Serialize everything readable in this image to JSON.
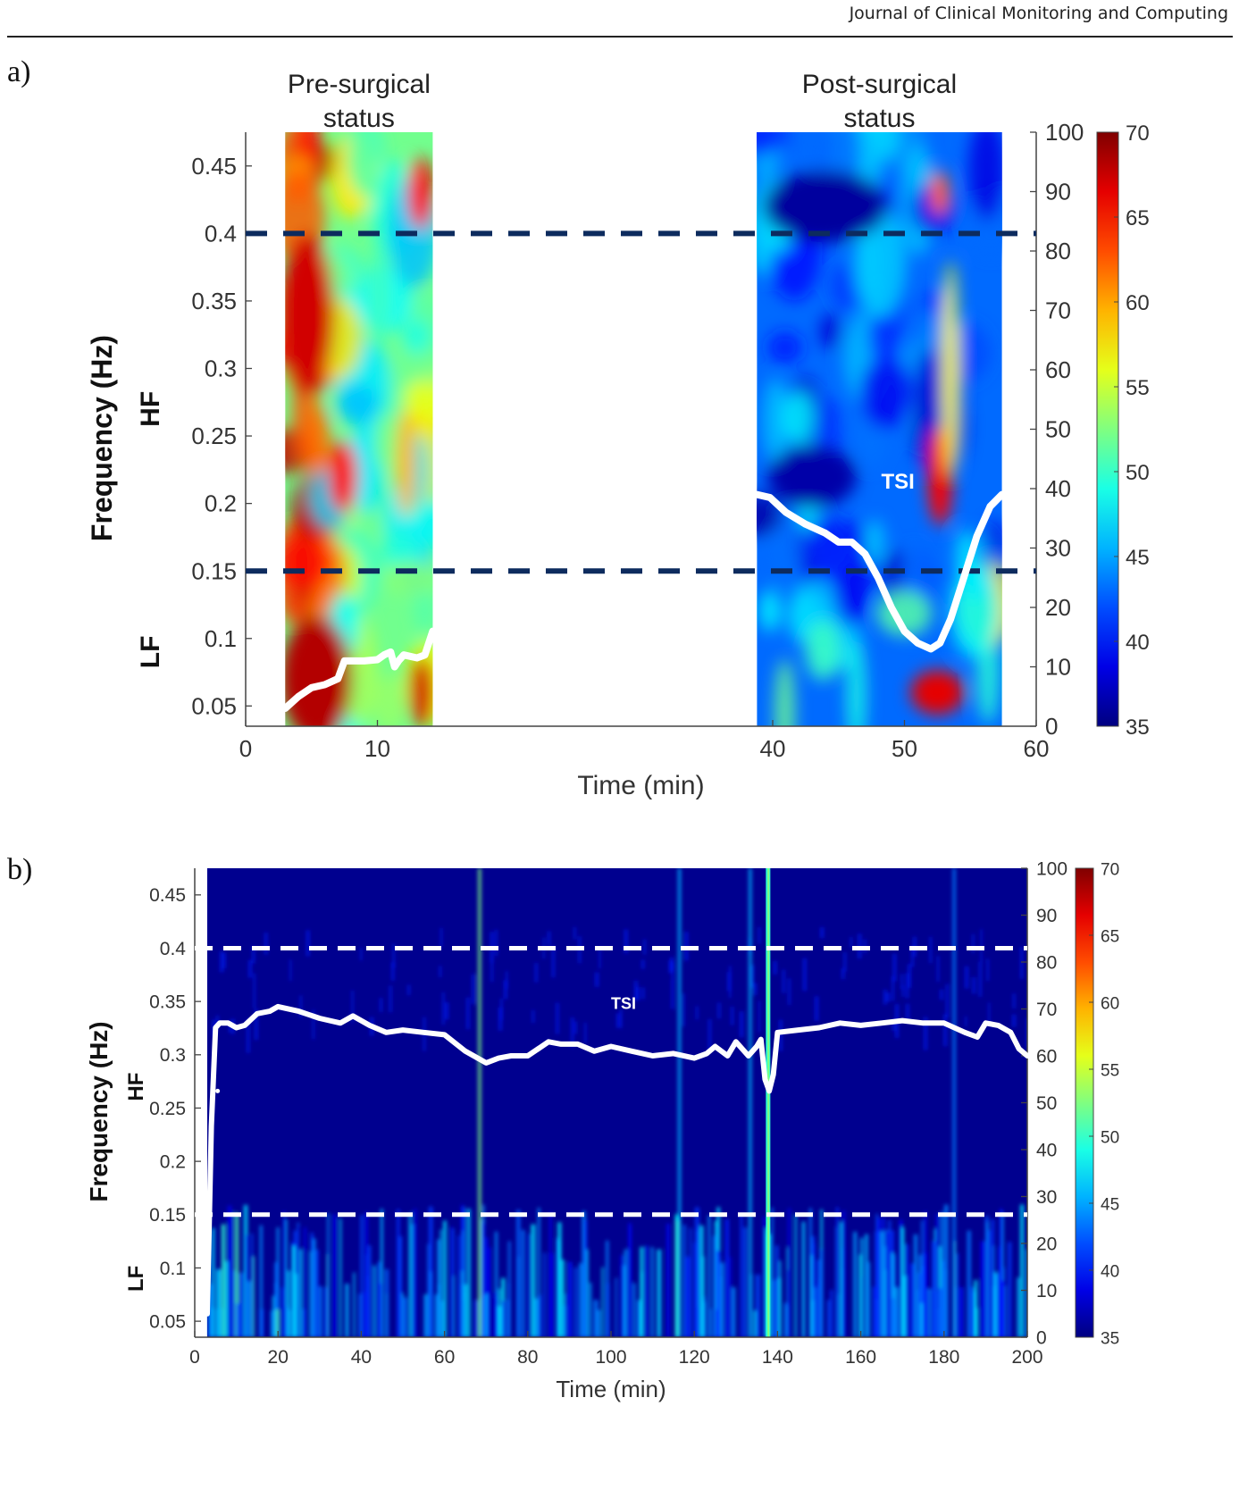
{
  "header": {
    "journal": "Journal of Clinical Monitoring and Computing"
  },
  "panels": [
    {
      "label": "a)"
    },
    {
      "label": "b)"
    }
  ],
  "chart_data": [
    {
      "type": "heatmap",
      "segment_titles": [
        "Pre-surgical status",
        "Post-surgical status"
      ],
      "segment_title_lines": [
        [
          "Pre-surgical",
          "status"
        ],
        [
          "Post-surgical",
          "status"
        ]
      ],
      "segments_time_min": [
        [
          3,
          14.2
        ],
        [
          38.8,
          57.4
        ]
      ],
      "xlabel": "Time (min)",
      "ylabel": "Frequency (Hz)",
      "band_labels": [
        "HF",
        "LF"
      ],
      "xlim": [
        0,
        60
      ],
      "ylim": [
        0.035,
        0.475
      ],
      "xticks": [
        0,
        10,
        40,
        50,
        60
      ],
      "yticks": [
        0.05,
        0.1,
        0.15,
        0.2,
        0.25,
        0.3,
        0.35,
        0.4,
        0.45
      ],
      "right_axis": {
        "ylim": [
          0,
          100
        ],
        "ticks": [
          0,
          10,
          20,
          30,
          40,
          50,
          60,
          70,
          80,
          90,
          100
        ]
      },
      "colorbar": {
        "range": [
          35,
          70
        ],
        "ticks": [
          35,
          40,
          45,
          50,
          55,
          60,
          65,
          70
        ],
        "colormap": "jet"
      },
      "band_limits_hz": [
        0.15,
        0.4
      ],
      "band_line_color": "#0d2b5e",
      "annotations": [
        {
          "text": "TSI",
          "x": 49.5,
          "y": 40
        }
      ],
      "series": [
        {
          "name": "TSI",
          "color": "#ffffff",
          "x": [
            3,
            4,
            5,
            6,
            7,
            7.5,
            8,
            9,
            10,
            10.5,
            11,
            11.3,
            11.6,
            12,
            13,
            13.6,
            14.2
          ],
          "y": [
            3,
            5,
            6.5,
            7,
            8,
            11,
            11,
            11,
            11.2,
            12,
            12.5,
            10,
            11,
            12,
            11.5,
            12,
            16
          ]
        },
        {
          "name": "TSI",
          "color": "#ffffff",
          "x": [
            38.8,
            39.8,
            41,
            42.5,
            44,
            45,
            46,
            47,
            48,
            49,
            50,
            51,
            52,
            52.7,
            53.5,
            54.5,
            55.5,
            56.5,
            57.4
          ],
          "y": [
            39,
            38.5,
            36,
            34,
            32.5,
            31,
            31,
            29,
            25,
            20,
            16,
            14,
            13,
            14,
            18,
            25,
            32,
            37,
            39
          ]
        }
      ]
    },
    {
      "type": "heatmap",
      "xlabel": "Time (min)",
      "ylabel": "Frequency (Hz)",
      "band_labels": [
        "HF",
        "LF"
      ],
      "xlim": [
        0,
        200
      ],
      "ylim": [
        0.035,
        0.475
      ],
      "xticks": [
        0,
        20,
        40,
        60,
        80,
        100,
        120,
        140,
        160,
        180,
        200
      ],
      "yticks": [
        0.05,
        0.1,
        0.15,
        0.2,
        0.25,
        0.3,
        0.35,
        0.4,
        0.45
      ],
      "right_axis": {
        "ylim": [
          0,
          100
        ],
        "ticks": [
          0,
          10,
          20,
          30,
          40,
          50,
          60,
          70,
          80,
          90,
          100
        ]
      },
      "colorbar": {
        "range": [
          35,
          70
        ],
        "ticks": [
          35,
          40,
          45,
          50,
          55,
          60,
          65,
          70
        ],
        "colormap": "jet"
      },
      "band_limits_hz": [
        0.15,
        0.4
      ],
      "band_line_color": "#ffffff",
      "heatmap_start_min": 3,
      "annotations": [
        {
          "text": "TSI",
          "x": 103,
          "y": 70
        }
      ],
      "series": [
        {
          "name": "TSI",
          "color": "#ffffff",
          "x": [
            3,
            4,
            5,
            6,
            8,
            10,
            12,
            15,
            18,
            20,
            25,
            30,
            35,
            38,
            42,
            46,
            50,
            55,
            60,
            65,
            70,
            73,
            76,
            80,
            85,
            88,
            92,
            96,
            100,
            105,
            110,
            115,
            120,
            123,
            125,
            128,
            130,
            133,
            135,
            136,
            137,
            138,
            139,
            140,
            145,
            150,
            155,
            160,
            165,
            170,
            175,
            180,
            185,
            188,
            190,
            193,
            196,
            198,
            200
          ],
          "y": [
            5,
            45,
            66,
            67,
            67,
            66,
            66.5,
            69,
            69.5,
            70.5,
            69.5,
            68,
            67,
            68.5,
            66.5,
            65,
            65.5,
            65,
            64.5,
            61,
            58.5,
            59.5,
            60,
            60,
            63,
            62.5,
            62.5,
            61,
            62,
            61,
            60,
            60.5,
            59.5,
            60.5,
            62,
            60,
            63,
            60,
            62,
            63.5,
            55,
            52.5,
            56,
            65,
            65.5,
            66,
            67,
            66.5,
            67,
            67.5,
            67,
            67,
            65,
            64,
            67,
            66.5,
            65,
            61.5,
            60
          ]
        }
      ]
    }
  ]
}
